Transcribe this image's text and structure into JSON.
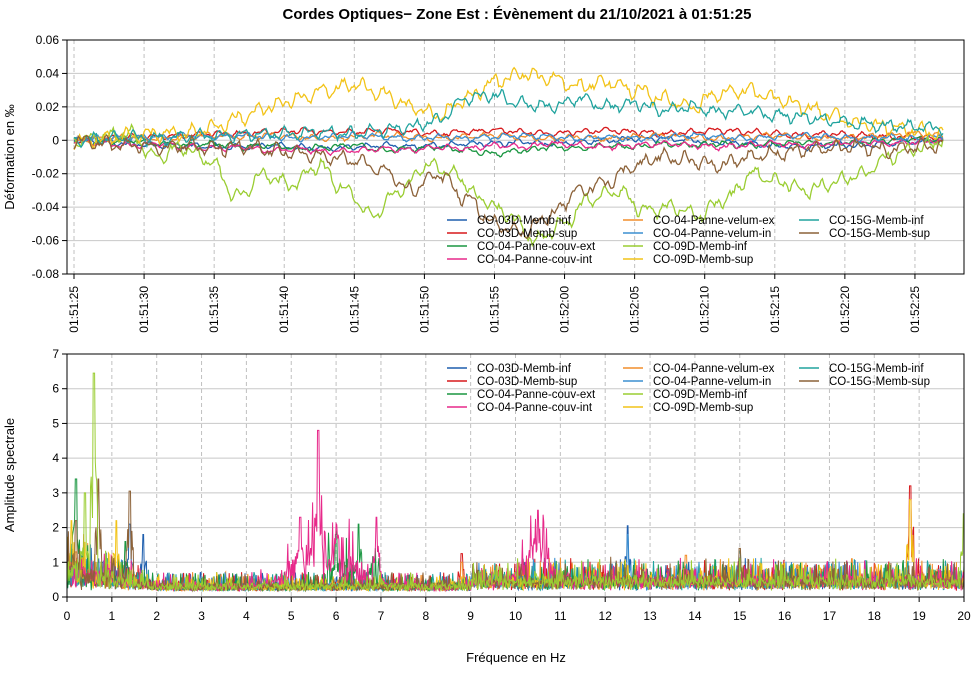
{
  "chart_data": [
    {
      "type": "line",
      "title": "Cordes Optiques− Zone Est : Évènement du 21/10/2021 à 01:51:25",
      "xlabel": "",
      "ylabel": "Déformation en ‰",
      "ylim": [
        -0.08,
        0.06
      ],
      "yticks": [
        "-0.08",
        "-0.06",
        "-0.04",
        "-0.02",
        "0",
        "0.02",
        "0.04",
        "0.06"
      ],
      "xlim_seconds_after_start": [
        -0.5,
        63.5
      ],
      "x_tick_labels": [
        "01:51:25",
        "01:51:30",
        "01:51:35",
        "01:51:40",
        "01:51:45",
        "01:51:50",
        "01:51:55",
        "01:52:00",
        "01:52:05",
        "01:52:10",
        "01:52:15",
        "01:52:20",
        "01:52:25"
      ],
      "grid": true,
      "legend_position": "bottom-right",
      "series": [
        {
          "name": "CO-03D-Memb-inf",
          "color": "#1f5fae",
          "values": [
            0,
            -0.001,
            -0.002,
            -0.003,
            -0.003,
            -0.004,
            -0.004,
            -0.003,
            -0.004,
            -0.005,
            -0.004,
            -0.003,
            -0.004,
            -0.003,
            -0.002,
            -0.002,
            -0.001,
            -0.002,
            -0.001,
            0,
            0.001,
            0.001,
            0,
            -0.001,
            -0.002,
            -0.003,
            -0.004,
            -0.003,
            -0.003,
            -0.002,
            -0.001,
            0
          ]
        },
        {
          "name": "CO-03D-Memb-sup",
          "color": "#d7191c",
          "values": [
            0,
            0.001,
            0.002,
            0.002,
            0.003,
            0.004,
            0.004,
            0.005,
            0.006,
            0.005,
            0.005,
            0.006,
            0.005,
            0.004,
            0.005,
            0.006,
            0.005,
            0.004,
            0.005,
            0.006,
            0.005,
            0.004,
            0.005,
            0.006,
            0.005,
            0.004,
            0.003,
            0.004,
            0.003,
            0.002,
            0.002,
            0.001
          ]
        },
        {
          "name": "CO-04-Panne-couv-ext",
          "color": "#1a9641",
          "values": [
            0,
            -0.001,
            0,
            -0.002,
            -0.003,
            -0.002,
            -0.004,
            -0.003,
            -0.005,
            -0.004,
            -0.003,
            -0.006,
            -0.005,
            -0.004,
            -0.006,
            -0.008,
            -0.006,
            -0.004,
            -0.005,
            -0.003,
            -0.004,
            -0.002,
            -0.003,
            -0.002,
            -0.003,
            -0.002,
            -0.001,
            -0.002,
            -0.001,
            0,
            0.001,
            0
          ]
        },
        {
          "name": "CO-04-Panne-couv-int",
          "color": "#e7298a",
          "values": [
            0,
            -0.002,
            -0.003,
            -0.002,
            -0.004,
            -0.005,
            -0.004,
            -0.006,
            -0.005,
            -0.007,
            -0.006,
            -0.005,
            -0.006,
            -0.004,
            -0.005,
            -0.003,
            -0.004,
            -0.002,
            -0.003,
            -0.004,
            -0.003,
            -0.002,
            -0.003,
            -0.004,
            -0.003,
            -0.002,
            -0.003,
            -0.002,
            -0.001,
            -0.002,
            -0.001,
            0
          ]
        },
        {
          "name": "CO-04-Panne-velum-ex",
          "color": "#f28e2b",
          "values": [
            0,
            0.001,
            0.002,
            0.001,
            0.002,
            0.003,
            0.002,
            0.003,
            0.002,
            0.001,
            0.002,
            0.003,
            0.002,
            0.001,
            0.002,
            0.003,
            0.002,
            0.001,
            0.002,
            0.001,
            0.002,
            0.003,
            0.002,
            0.001,
            0.002,
            0.003,
            0.002,
            0.001,
            0.002,
            0.003,
            0.004,
            0.003
          ]
        },
        {
          "name": "CO-04-Panne-velum-in",
          "color": "#3b8fd1",
          "values": [
            0,
            0.001,
            0.002,
            0.002,
            0.003,
            0.002,
            0.003,
            0.002,
            0.001,
            0.002,
            0.003,
            0.002,
            0.001,
            0.002,
            0.001,
            0.002,
            0.003,
            0.002,
            0.001,
            0.002,
            0.001,
            0.002,
            0.003,
            0.002,
            0.001,
            0.002,
            0.003,
            0.002,
            0.001,
            0.002,
            0.001,
            0.002
          ]
        },
        {
          "name": "CO-09D-Memb-inf",
          "color": "#9acd32",
          "values": [
            0,
            0.002,
            0.004,
            -0.01,
            -0.004,
            -0.012,
            -0.034,
            -0.02,
            -0.027,
            -0.015,
            -0.03,
            -0.045,
            -0.03,
            -0.015,
            -0.02,
            -0.035,
            -0.045,
            -0.06,
            -0.05,
            -0.035,
            -0.03,
            -0.042,
            -0.04,
            -0.045,
            -0.035,
            -0.02,
            -0.025,
            -0.03,
            -0.025,
            -0.02,
            -0.01,
            -0.005,
            0.0
          ]
        },
        {
          "name": "CO-09D-Memb-sup",
          "color": "#f2c318",
          "values": [
            0,
            0.001,
            0.003,
            0.004,
            0.004,
            0.008,
            0.014,
            0.02,
            0.025,
            0.03,
            0.033,
            0.028,
            0.02,
            0.015,
            0.025,
            0.035,
            0.04,
            0.037,
            0.032,
            0.035,
            0.03,
            0.025,
            0.02,
            0.028,
            0.03,
            0.025,
            0.02,
            0.015,
            0.01,
            0.008,
            0.006,
            0.004
          ]
        },
        {
          "name": "CO-15G-Memb-inf",
          "color": "#20a39e",
          "values": [
            0,
            0.001,
            0.002,
            0.001,
            0.002,
            0.003,
            0.003,
            0.004,
            0.004,
            0.005,
            0.004,
            0.006,
            0.008,
            0.012,
            0.025,
            0.027,
            0.022,
            0.02,
            0.025,
            0.02,
            0.022,
            0.018,
            0.02,
            0.017,
            0.018,
            0.015,
            0.014,
            0.012,
            0.01,
            0.009,
            0.008,
            0.007
          ]
        },
        {
          "name": "CO-15G-Memb-sup",
          "color": "#8c6239",
          "values": [
            0,
            -0.002,
            -0.003,
            -0.004,
            -0.003,
            -0.005,
            -0.004,
            -0.006,
            -0.008,
            -0.01,
            -0.012,
            -0.018,
            -0.03,
            -0.02,
            -0.035,
            -0.05,
            -0.055,
            -0.045,
            -0.03,
            -0.025,
            -0.015,
            -0.01,
            -0.012,
            -0.015,
            -0.01,
            -0.008,
            -0.006,
            -0.005,
            -0.004,
            -0.006,
            -0.004,
            -0.003
          ]
        }
      ]
    },
    {
      "type": "line",
      "title": "",
      "xlabel": "Fréquence en Hz",
      "ylabel": "Amplitude spectrale",
      "xlim": [
        0,
        20
      ],
      "ylim": [
        0,
        7
      ],
      "xticks": [
        "0",
        "1",
        "2",
        "3",
        "4",
        "5",
        "6",
        "7",
        "8",
        "9",
        "10",
        "11",
        "12",
        "13",
        "14",
        "15",
        "16",
        "17",
        "18",
        "19",
        "20"
      ],
      "yticks": [
        "0",
        "1",
        "2",
        "3",
        "4",
        "5",
        "6",
        "7"
      ],
      "grid": true,
      "legend_position": "top-right",
      "series": [
        {
          "name": "CO-03D-Memb-inf",
          "color": "#1f5fae",
          "peaks": [
            [
              0.3,
              1.2
            ],
            [
              0.8,
              1.0
            ],
            [
              1.4,
              2.1
            ],
            [
              1.7,
              1.8
            ],
            [
              12.5,
              2.05
            ]
          ]
        },
        {
          "name": "CO-03D-Memb-sup",
          "color": "#d7191c",
          "peaks": [
            [
              0.5,
              0.8
            ],
            [
              6.2,
              0.9
            ],
            [
              8.8,
              1.25
            ],
            [
              18.8,
              3.2
            ]
          ]
        },
        {
          "name": "CO-04-Panne-couv-ext",
          "color": "#1a9641",
          "peaks": [
            [
              0.2,
              3.4
            ],
            [
              1.3,
              1.6
            ],
            [
              6.0,
              1.8
            ],
            [
              6.5,
              2.1
            ]
          ]
        },
        {
          "name": "CO-04-Panne-couv-int",
          "color": "#e7298a",
          "peaks": [
            [
              5.2,
              2.3
            ],
            [
              5.6,
              4.8
            ],
            [
              6.9,
              2.3
            ],
            [
              10.5,
              2.5
            ]
          ]
        },
        {
          "name": "CO-04-Panne-velum-ex",
          "color": "#f28e2b",
          "peaks": [
            [
              0.2,
              1.3
            ],
            [
              8.8,
              1.0
            ],
            [
              13.8,
              1.2
            ],
            [
              17.5,
              1.1
            ]
          ]
        },
        {
          "name": "CO-04-Panne-velum-in",
          "color": "#3b8fd1",
          "peaks": [
            [
              0.6,
              1.0
            ],
            [
              12.5,
              1.8
            ]
          ]
        },
        {
          "name": "CO-09D-Memb-inf",
          "color": "#9acd32",
          "peaks": [
            [
              0.4,
              3.0
            ],
            [
              0.6,
              6.45
            ],
            [
              20.0,
              2.4
            ]
          ]
        },
        {
          "name": "CO-09D-Memb-sup",
          "color": "#f2c318",
          "peaks": [
            [
              0.1,
              2.2
            ],
            [
              1.1,
              2.2
            ],
            [
              18.8,
              2.8
            ]
          ]
        },
        {
          "name": "CO-15G-Memb-inf",
          "color": "#20a39e",
          "peaks": [
            [
              0.9,
              1.1
            ],
            [
              15.0,
              1.3
            ]
          ]
        },
        {
          "name": "CO-15G-Memb-sup",
          "color": "#8c6239",
          "peaks": [
            [
              0.2,
              2.2
            ],
            [
              0.7,
              3.4
            ],
            [
              1.4,
              3.05
            ],
            [
              15.0,
              1.4
            ]
          ]
        }
      ]
    }
  ]
}
